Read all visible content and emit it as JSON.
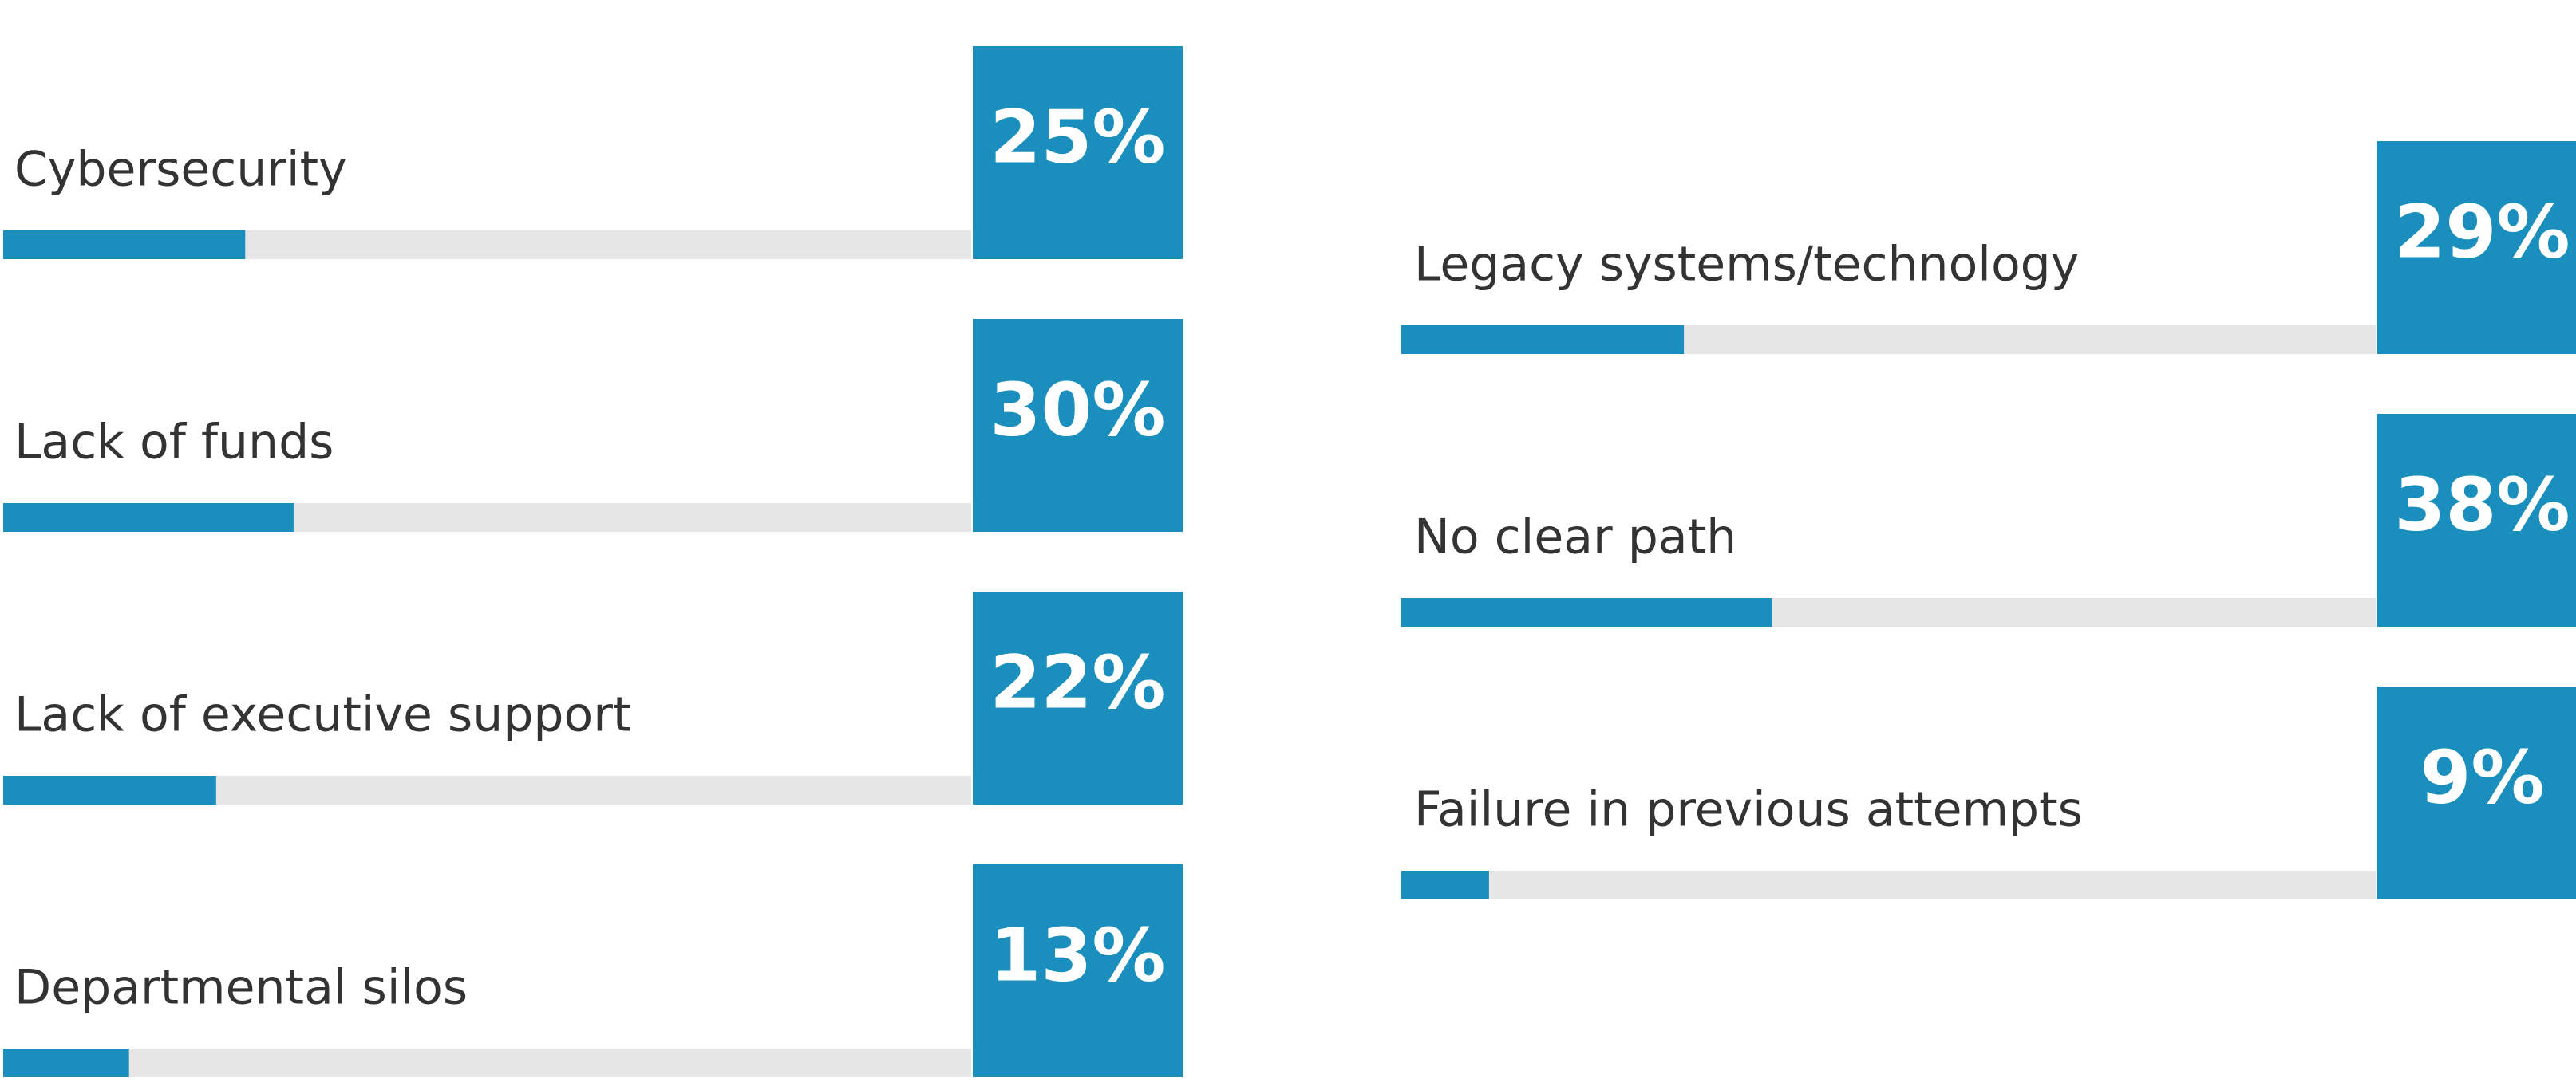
{
  "chart_data": [
    {
      "type": "bar",
      "categories": [
        "Cybersecurity",
        "Lack of funds",
        "Lack of executive support",
        "Departmental silos"
      ],
      "values": [
        25,
        30,
        22,
        13
      ],
      "value_labels": [
        "25%",
        "30%",
        "22%",
        "13%"
      ],
      "color": "#1a8fbe",
      "xlim": [
        0,
        100
      ]
    },
    {
      "type": "bar",
      "categories": [
        "Legacy systems/technology",
        "No clear path",
        "Failure in previous attempts"
      ],
      "values": [
        29,
        38,
        9
      ],
      "value_labels": [
        "29%",
        "38%",
        "9%"
      ],
      "color": "#1a8fbe",
      "xlim": [
        0,
        100
      ]
    }
  ]
}
